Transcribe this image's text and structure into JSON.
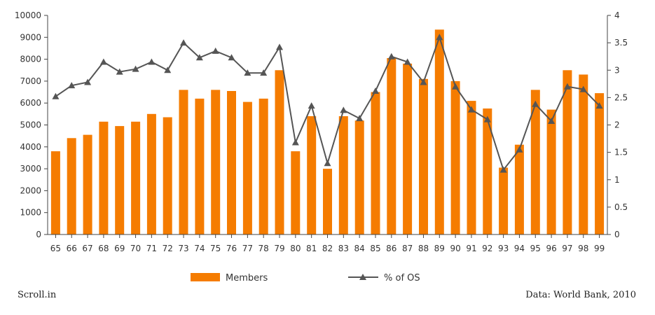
{
  "chart_data": {
    "type": "bar+line",
    "title": "",
    "xlabel": "",
    "ylabel": "",
    "categories": [
      "65",
      "66",
      "67",
      "68",
      "69",
      "70",
      "71",
      "72",
      "73",
      "74",
      "75",
      "76",
      "77",
      "78",
      "79",
      "80",
      "81",
      "82",
      "83",
      "84",
      "85",
      "86",
      "87",
      "88",
      "89",
      "90",
      "91",
      "92",
      "93",
      "94",
      "95",
      "96",
      "97",
      "98",
      "99"
    ],
    "series": [
      {
        "name": "Members",
        "type": "bar",
        "axis": "left",
        "color": "#f57c00",
        "values": [
          3800,
          4400,
          4550,
          5150,
          4950,
          5150,
          5500,
          5350,
          6600,
          6200,
          6600,
          6550,
          6050,
          6200,
          7500,
          3800,
          5400,
          3000,
          5400,
          5200,
          6500,
          8050,
          7800,
          7100,
          9350,
          7000,
          6100,
          5750,
          3050,
          4100,
          6600,
          5700,
          7500,
          7300,
          6450
        ]
      },
      {
        "name": "% of OS",
        "type": "line",
        "axis": "right",
        "color": "#555555",
        "values": [
          2.52,
          2.72,
          2.78,
          3.15,
          2.97,
          3.02,
          3.15,
          3.0,
          3.5,
          3.23,
          3.35,
          3.23,
          2.95,
          2.95,
          3.42,
          1.68,
          2.35,
          1.3,
          2.27,
          2.12,
          2.62,
          3.25,
          3.15,
          2.78,
          3.6,
          2.7,
          2.28,
          2.1,
          1.18,
          1.55,
          2.38,
          2.07,
          2.7,
          2.65,
          2.35
        ]
      }
    ],
    "y_left": {
      "min": 0,
      "max": 10000,
      "ticks": [
        "0",
        "1000",
        "2000",
        "3000",
        "4000",
        "5000",
        "6000",
        "7000",
        "8000",
        "9000",
        "10000"
      ]
    },
    "y_right": {
      "min": 0,
      "max": 4,
      "ticks": [
        "0",
        "0.5",
        "1",
        "1.5",
        "2",
        "2.5",
        "3",
        "3.5",
        "4"
      ]
    },
    "grid": false,
    "legend": {
      "placement": "bottom-center"
    }
  },
  "footer": {
    "left": "Scroll.in",
    "right": "Data: World Bank, 2010"
  }
}
